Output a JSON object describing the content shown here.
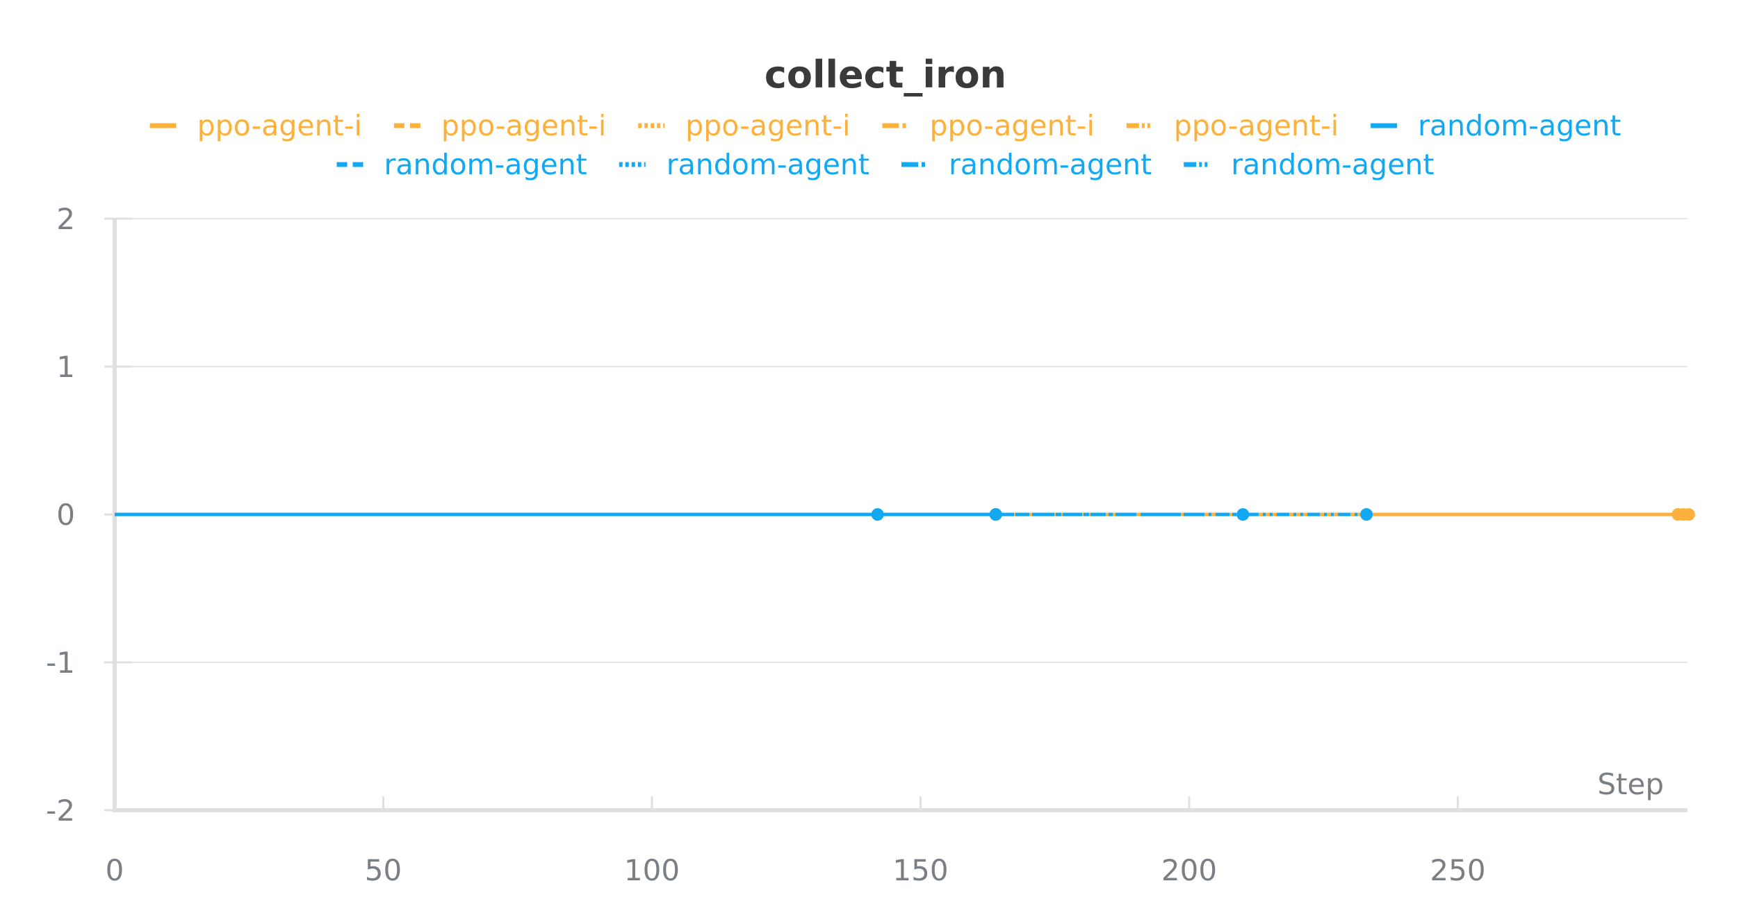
{
  "chart_data": {
    "type": "line",
    "title": "collect_iron",
    "xlabel": "Step",
    "ylabel": "",
    "xlim": [
      0,
      293
    ],
    "ylim": [
      -2,
      2
    ],
    "x_ticks": [
      0,
      50,
      100,
      150,
      200,
      250
    ],
    "y_ticks": [
      -2,
      -1,
      0,
      1,
      2
    ],
    "grid": true,
    "legend_position": "top-center",
    "colors": {
      "ppo": "#fbb13c",
      "random": "#13a8f2"
    },
    "series": [
      {
        "name": "ppo-agent-i",
        "style": "solid",
        "color": "#fbb13c",
        "x": [
          0,
          164,
          210,
          233,
          245,
          257,
          260,
          292
        ],
        "y": [
          0,
          0,
          0,
          0,
          0,
          0,
          0,
          0
        ]
      },
      {
        "name": "ppo-agent-i",
        "style": "dashed",
        "color": "#fbb13c",
        "x": [
          0,
          164,
          210,
          260,
          292
        ],
        "y": [
          0,
          0,
          0,
          0,
          0
        ]
      },
      {
        "name": "ppo-agent-i",
        "style": "dotted",
        "color": "#fbb13c",
        "x": [
          0,
          164,
          210,
          257,
          291
        ],
        "y": [
          0,
          0,
          0,
          0,
          0
        ]
      },
      {
        "name": "ppo-agent-i",
        "style": "dashdot",
        "color": "#fbb13c",
        "x": [
          0,
          164,
          233,
          245,
          293
        ],
        "y": [
          0,
          0,
          0,
          0,
          0
        ]
      },
      {
        "name": "ppo-agent-i",
        "style": "dashdotdot",
        "color": "#fbb13c",
        "x": [
          0,
          164,
          233,
          291
        ],
        "y": [
          0,
          0,
          0,
          0
        ]
      },
      {
        "name": "random-agent",
        "style": "solid",
        "color": "#13a8f2",
        "x": [
          0,
          81,
          164
        ],
        "y": [
          0,
          0,
          0
        ]
      },
      {
        "name": "random-agent",
        "style": "dashed",
        "color": "#13a8f2",
        "x": [
          0,
          81,
          142
        ],
        "y": [
          0,
          0,
          0
        ]
      },
      {
        "name": "random-agent",
        "style": "dotted",
        "color": "#13a8f2",
        "x": [
          0,
          142,
          164
        ],
        "y": [
          0,
          0,
          0
        ]
      },
      {
        "name": "random-agent",
        "style": "dashdot",
        "color": "#13a8f2",
        "x": [
          0,
          164,
          210
        ],
        "y": [
          0,
          0,
          0
        ]
      },
      {
        "name": "random-agent",
        "style": "dashdotdot",
        "color": "#13a8f2",
        "x": [
          0,
          164,
          210,
          233
        ],
        "y": [
          0,
          0,
          0,
          0
        ]
      }
    ]
  }
}
